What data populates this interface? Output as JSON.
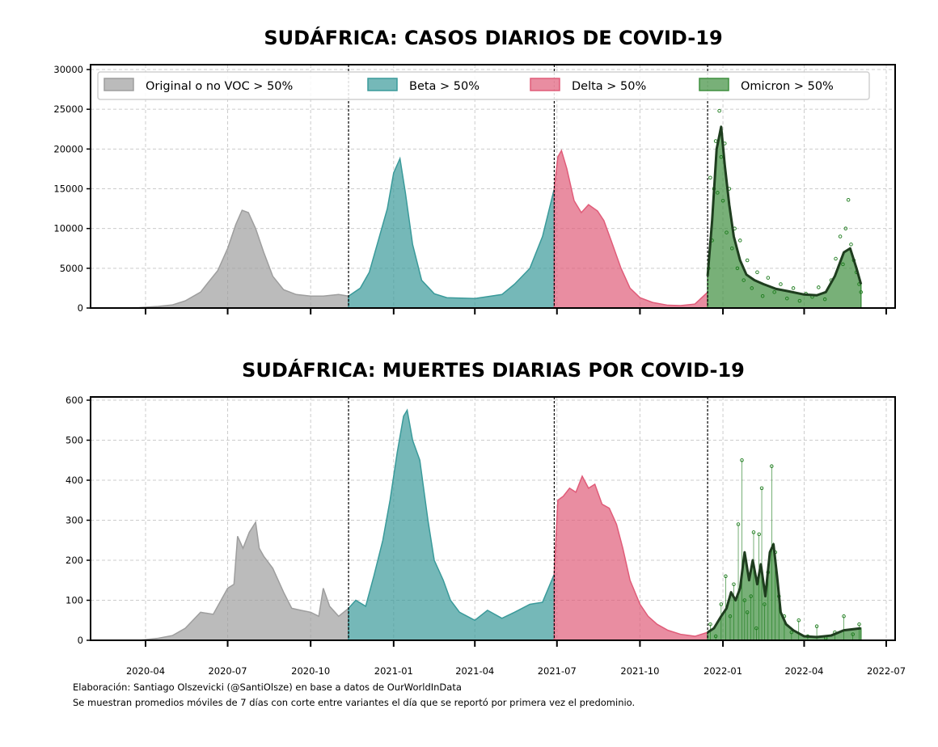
{
  "footer": {
    "line1": "Elaboración: Santiago Olszevicki (@SantiOlsze) en base a datos de OurWorldInData",
    "line2": "Se muestran promedios móviles de 7 días con corte entre variantes el día que se reportó por primera vez el predominio."
  },
  "colors": {
    "original": "#9e9e9e",
    "beta": "#3a9a9a",
    "delta": "#e05c79",
    "omicron": "#3f8f3f",
    "omicron_line": "#1e3d1e",
    "omicron_points": "#1a7a1a",
    "grid": "#cccccc",
    "divider": "#000000"
  },
  "chart_data": [
    {
      "type": "area",
      "title": "SUDÁFRICA: CASOS DIARIOS DE COVID-19",
      "xlabel": "",
      "ylabel": "",
      "ylim": [
        0,
        30000
      ],
      "yticks": [
        0,
        5000,
        10000,
        15000,
        20000,
        25000,
        30000
      ],
      "xticks": [
        "2020-04",
        "2020-07",
        "2020-10",
        "2021-01",
        "2021-04",
        "2021-07",
        "2021-10",
        "2022-01",
        "2022-04",
        "2022-07"
      ],
      "show_xtick_labels": false,
      "grid": true,
      "legend_position": "top",
      "dividers": [
        "2020-11-12",
        "2021-06-28",
        "2021-12-15"
      ],
      "series": [
        {
          "name": "Original o no VOC > 50%",
          "key": "original",
          "x": [
            "2020-03-05",
            "2020-03-25",
            "2020-04-15",
            "2020-05-01",
            "2020-05-15",
            "2020-06-01",
            "2020-06-10",
            "2020-06-20",
            "2020-07-01",
            "2020-07-10",
            "2020-07-17",
            "2020-07-24",
            "2020-08-01",
            "2020-08-10",
            "2020-08-20",
            "2020-09-01",
            "2020-09-15",
            "2020-10-01",
            "2020-10-15",
            "2020-11-01",
            "2020-11-12"
          ],
          "values": [
            0,
            50,
            200,
            400,
            900,
            2000,
            3300,
            4700,
            7500,
            10500,
            12300,
            12000,
            10000,
            7000,
            4000,
            2300,
            1700,
            1500,
            1500,
            1700,
            1500
          ]
        },
        {
          "name": "Beta > 50%",
          "key": "beta",
          "x": [
            "2020-11-12",
            "2020-11-25",
            "2020-12-05",
            "2020-12-15",
            "2020-12-25",
            "2021-01-01",
            "2021-01-08",
            "2021-01-14",
            "2021-01-22",
            "2021-02-01",
            "2021-02-15",
            "2021-03-01",
            "2021-04-01",
            "2021-05-01",
            "2021-05-15",
            "2021-06-01",
            "2021-06-15",
            "2021-06-28"
          ],
          "values": [
            1500,
            2500,
            4500,
            8500,
            12500,
            17000,
            18800,
            14500,
            8000,
            3500,
            1800,
            1300,
            1200,
            1700,
            3000,
            5000,
            9000,
            15000
          ]
        },
        {
          "name": "Delta > 50%",
          "key": "delta",
          "x": [
            "2021-06-28",
            "2021-07-02",
            "2021-07-06",
            "2021-07-12",
            "2021-07-20",
            "2021-07-28",
            "2021-08-05",
            "2021-08-15",
            "2021-08-22",
            "2021-08-30",
            "2021-09-10",
            "2021-09-20",
            "2021-10-01",
            "2021-10-15",
            "2021-11-01",
            "2021-11-15",
            "2021-12-01",
            "2021-12-15"
          ],
          "values": [
            15000,
            19000,
            19800,
            17500,
            13500,
            12000,
            13000,
            12200,
            11000,
            8500,
            5000,
            2500,
            1300,
            700,
            350,
            300,
            500,
            2000
          ]
        },
        {
          "name": "Omicron > 50%",
          "key": "omicron",
          "x": [
            "2021-12-15",
            "2021-12-20",
            "2021-12-25",
            "2021-12-30",
            "2022-01-03",
            "2022-01-08",
            "2022-01-13",
            "2022-01-20",
            "2022-01-27",
            "2022-02-05",
            "2022-02-15",
            "2022-03-01",
            "2022-03-15",
            "2022-04-01",
            "2022-04-15",
            "2022-04-25",
            "2022-05-05",
            "2022-05-15",
            "2022-05-22",
            "2022-05-29",
            "2022-06-03"
          ],
          "values": [
            4000,
            11000,
            20000,
            22800,
            18000,
            13000,
            9000,
            6000,
            4200,
            3500,
            3000,
            2400,
            2100,
            1700,
            1600,
            2000,
            4000,
            7000,
            7500,
            5000,
            3000
          ]
        }
      ],
      "omicron_daily_points": {
        "x": [
          "2021-12-16",
          "2021-12-18",
          "2021-12-20",
          "2021-12-22",
          "2021-12-24",
          "2021-12-26",
          "2021-12-28",
          "2021-12-30",
          "2022-01-01",
          "2022-01-03",
          "2022-01-05",
          "2022-01-08",
          "2022-01-11",
          "2022-01-14",
          "2022-01-17",
          "2022-01-20",
          "2022-01-24",
          "2022-01-28",
          "2022-02-02",
          "2022-02-08",
          "2022-02-14",
          "2022-02-20",
          "2022-02-27",
          "2022-03-06",
          "2022-03-13",
          "2022-03-20",
          "2022-03-27",
          "2022-04-03",
          "2022-04-10",
          "2022-04-17",
          "2022-04-24",
          "2022-05-01",
          "2022-05-06",
          "2022-05-11",
          "2022-05-14",
          "2022-05-17",
          "2022-05-20",
          "2022-05-23",
          "2022-05-26",
          "2022-05-29",
          "2022-06-01",
          "2022-06-03"
        ],
        "values": [
          5000,
          16400,
          8500,
          15000,
          21000,
          14500,
          24800,
          19000,
          13500,
          20700,
          9500,
          15000,
          7500,
          10000,
          5000,
          8500,
          3500,
          6000,
          2500,
          4500,
          1500,
          3800,
          2000,
          3000,
          1200,
          2500,
          900,
          1800,
          1400,
          2600,
          1100,
          3500,
          6200,
          9000,
          5500,
          10000,
          13600,
          8000,
          6000,
          4500,
          3000,
          2000
        ]
      }
    },
    {
      "type": "area",
      "title": "SUDÁFRICA: MUERTES DIARIAS POR COVID-19",
      "xlabel": "",
      "ylabel": "",
      "ylim": [
        0,
        600
      ],
      "yticks": [
        0,
        100,
        200,
        300,
        400,
        500,
        600
      ],
      "xticks": [
        "2020-04",
        "2020-07",
        "2020-10",
        "2021-01",
        "2021-04",
        "2021-07",
        "2021-10",
        "2022-01",
        "2022-04",
        "2022-07"
      ],
      "show_xtick_labels": true,
      "grid": true,
      "dividers": [
        "2020-11-12",
        "2021-06-28",
        "2021-12-15"
      ],
      "series": [
        {
          "name": "Original o no VOC > 50%",
          "key": "original",
          "x": [
            "2020-03-25",
            "2020-04-15",
            "2020-05-01",
            "2020-05-15",
            "2020-06-01",
            "2020-06-15",
            "2020-07-01",
            "2020-07-08",
            "2020-07-12",
            "2020-07-18",
            "2020-07-25",
            "2020-08-01",
            "2020-08-05",
            "2020-08-10",
            "2020-08-20",
            "2020-09-01",
            "2020-09-10",
            "2020-09-20",
            "2020-10-01",
            "2020-10-10",
            "2020-10-15",
            "2020-10-22",
            "2020-11-01",
            "2020-11-12"
          ],
          "values": [
            0,
            5,
            12,
            30,
            70,
            65,
            130,
            140,
            260,
            230,
            270,
            295,
            230,
            210,
            180,
            120,
            80,
            75,
            70,
            60,
            130,
            85,
            60,
            80
          ]
        },
        {
          "name": "Beta > 50%",
          "key": "beta",
          "x": [
            "2020-11-12",
            "2020-11-20",
            "2020-12-01",
            "2020-12-10",
            "2020-12-20",
            "2020-12-28",
            "2021-01-05",
            "2021-01-12",
            "2021-01-16",
            "2021-01-22",
            "2021-01-30",
            "2021-02-08",
            "2021-02-15",
            "2021-02-25",
            "2021-03-05",
            "2021-03-15",
            "2021-04-01",
            "2021-04-15",
            "2021-05-01",
            "2021-05-15",
            "2021-06-01",
            "2021-06-15",
            "2021-06-28"
          ],
          "values": [
            80,
            100,
            85,
            160,
            250,
            350,
            470,
            560,
            575,
            500,
            450,
            300,
            200,
            150,
            100,
            70,
            50,
            75,
            55,
            70,
            90,
            95,
            165
          ]
        },
        {
          "name": "Delta > 50%",
          "key": "delta",
          "x": [
            "2021-06-28",
            "2021-07-02",
            "2021-07-08",
            "2021-07-15",
            "2021-07-22",
            "2021-07-29",
            "2021-08-05",
            "2021-08-12",
            "2021-08-20",
            "2021-08-28",
            "2021-09-05",
            "2021-09-12",
            "2021-09-20",
            "2021-10-01",
            "2021-10-10",
            "2021-10-20",
            "2021-11-01",
            "2021-11-15",
            "2021-12-01",
            "2021-12-15"
          ],
          "values": [
            170,
            350,
            360,
            380,
            370,
            410,
            380,
            390,
            340,
            330,
            290,
            230,
            150,
            90,
            60,
            40,
            25,
            15,
            10,
            20
          ]
        },
        {
          "name": "Omicron > 50%",
          "key": "omicron",
          "x": [
            "2021-12-15",
            "2021-12-22",
            "2021-12-30",
            "2022-01-05",
            "2022-01-10",
            "2022-01-15",
            "2022-01-20",
            "2022-01-25",
            "2022-01-30",
            "2022-02-03",
            "2022-02-08",
            "2022-02-12",
            "2022-02-17",
            "2022-02-22",
            "2022-02-26",
            "2022-03-02",
            "2022-03-06",
            "2022-03-12",
            "2022-03-20",
            "2022-04-01",
            "2022-04-15",
            "2022-05-01",
            "2022-05-15",
            "2022-06-03"
          ],
          "values": [
            20,
            30,
            60,
            80,
            120,
            100,
            130,
            220,
            150,
            200,
            140,
            190,
            110,
            220,
            240,
            160,
            70,
            40,
            25,
            10,
            8,
            12,
            25,
            30
          ]
        }
      ],
      "omicron_daily_points": {
        "x": [
          "2021-12-18",
          "2021-12-24",
          "2021-12-30",
          "2022-01-04",
          "2022-01-09",
          "2022-01-13",
          "2022-01-18",
          "2022-01-22",
          "2022-01-25",
          "2022-01-28",
          "2022-02-01",
          "2022-02-04",
          "2022-02-07",
          "2022-02-10",
          "2022-02-13",
          "2022-02-16",
          "2022-02-20",
          "2022-02-24",
          "2022-02-28",
          "2022-03-04",
          "2022-03-10",
          "2022-03-18",
          "2022-03-26",
          "2022-04-05",
          "2022-04-15",
          "2022-04-25",
          "2022-05-05",
          "2022-05-15",
          "2022-05-25",
          "2022-06-01"
        ],
        "values": [
          40,
          10,
          90,
          160,
          60,
          140,
          290,
          450,
          100,
          70,
          110,
          270,
          30,
          265,
          380,
          90,
          170,
          435,
          220,
          110,
          60,
          20,
          50,
          10,
          35,
          5,
          20,
          60,
          15,
          40
        ]
      }
    }
  ]
}
